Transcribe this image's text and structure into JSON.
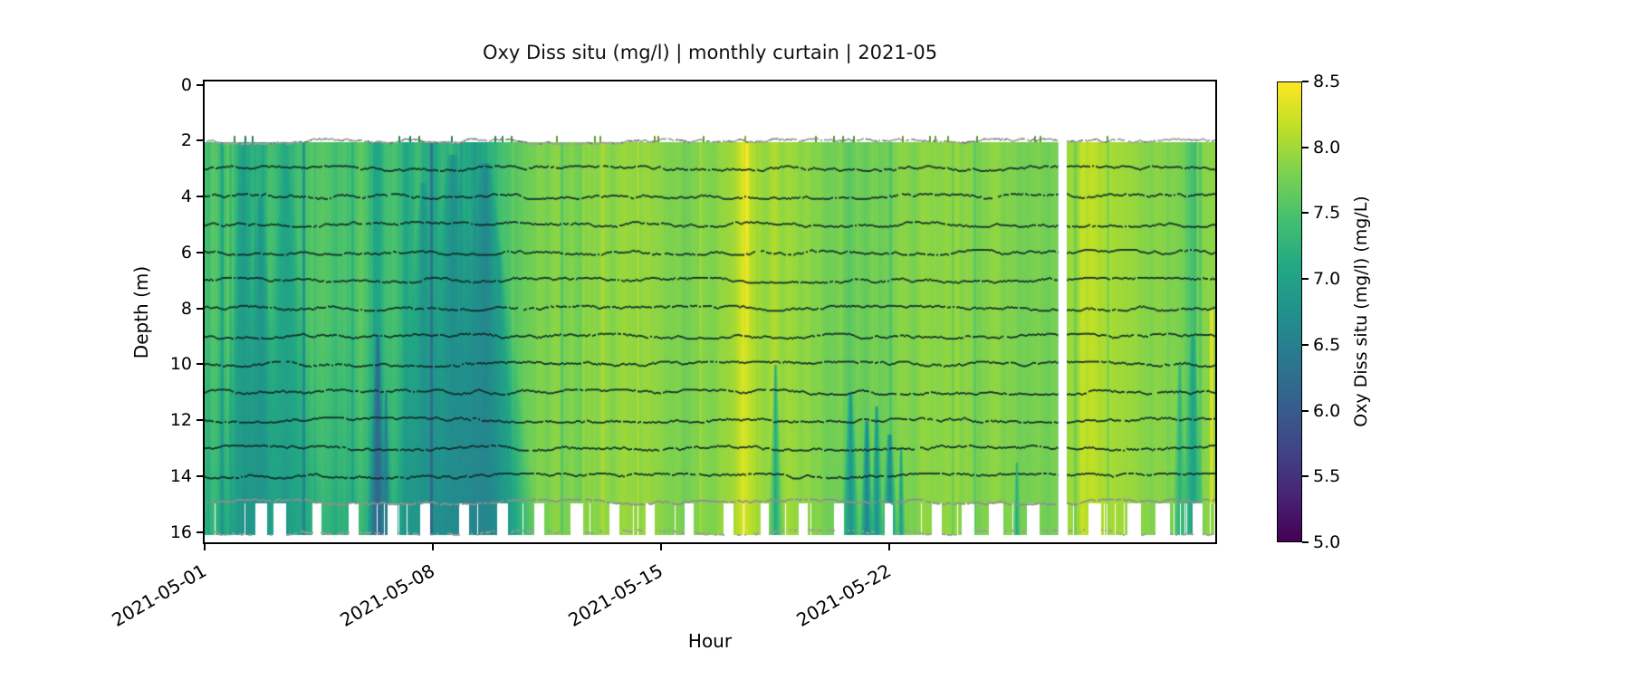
{
  "title": "Oxy Diss situ (mg/l) | monthly curtain | 2021-05",
  "axes": {
    "xlabel": "Hour",
    "ylabel": "Depth (m)",
    "x_ticks": [
      {
        "day": 0,
        "label": "2021-05-01"
      },
      {
        "day": 7,
        "label": "2021-05-08"
      },
      {
        "day": 14,
        "label": "2021-05-15"
      },
      {
        "day": 21,
        "label": "2021-05-22"
      }
    ],
    "y_ticks": [
      0,
      2,
      4,
      6,
      8,
      10,
      12,
      14,
      16
    ],
    "ylim": [
      16.4,
      0
    ]
  },
  "colorbar": {
    "label": "Oxy Diss situ (mg/l) (mg/L)",
    "vmin": 5.0,
    "vmax": 8.5,
    "ticks": [
      {
        "v": 5.0,
        "label": "5.0"
      },
      {
        "v": 5.5,
        "label": "5.5"
      },
      {
        "v": 6.0,
        "label": "6.0"
      },
      {
        "v": 6.5,
        "label": "6.5"
      },
      {
        "v": 7.0,
        "label": "7.0"
      },
      {
        "v": 7.5,
        "label": "7.5"
      },
      {
        "v": 8.0,
        "label": "8.0"
      },
      {
        "v": 8.5,
        "label": "8.5"
      }
    ]
  },
  "chart_data": {
    "type": "heatmap",
    "title": "Oxy Diss situ (mg/l) | monthly curtain | 2021-05",
    "x_start": "2021-05-01",
    "x_end": "2021-06-01",
    "x_span_days": 31,
    "depth_top": 2.07,
    "depth_full_bottom": 14.95,
    "depth_band_bottom": 16.07,
    "colormap": "viridis",
    "clim": [
      5.0,
      8.5
    ],
    "viridis_stops": [
      "#440154",
      "#482475",
      "#414487",
      "#35608d",
      "#2a788e",
      "#21918c",
      "#22a884",
      "#44bf70",
      "#7ad151",
      "#bddf26",
      "#fde725"
    ],
    "column_step_days": 0.25,
    "column_values": [
      7.45,
      7.55,
      7.35,
      7.6,
      7.3,
      7.0,
      7.45,
      7.15,
      7.5,
      7.3,
      7.2,
      7.45,
      7.6,
      7.5,
      7.65,
      7.55,
      7.45,
      7.6,
      7.5,
      7.65,
      7.5,
      6.95,
      7.4,
      7.55,
      7.3,
      7.1,
      7.35,
      7.15,
      7.05,
      7.2,
      7.35,
      7.2,
      7.1,
      6.95,
      7.1,
      7.3,
      7.45,
      7.55,
      7.6,
      7.7,
      7.75,
      7.85,
      7.8,
      7.9,
      7.8,
      7.85,
      7.75,
      7.9,
      7.9,
      7.95,
      7.85,
      8.0,
      7.95,
      7.9,
      8.0,
      7.95,
      7.9,
      7.8,
      7.85,
      7.75,
      7.85,
      7.9,
      7.8,
      7.9,
      7.95,
      8.0,
      8.35,
      8.1,
      8.0,
      7.95,
      8.05,
      7.95,
      8.0,
      7.9,
      7.95,
      7.85,
      7.8,
      7.7,
      7.85,
      7.6,
      7.75,
      7.65,
      7.8,
      7.7,
      7.75,
      7.85,
      7.9,
      7.8,
      7.95,
      7.9,
      7.85,
      7.9,
      7.95,
      7.85,
      7.9,
      7.8,
      7.85,
      7.9,
      7.8,
      7.85,
      7.75,
      7.8,
      7.85,
      7.75,
      7.8,
      7.85,
      7.95,
      8.0,
      8.1,
      8.15,
      8.05,
      8.1,
      8.0,
      7.95,
      8.0,
      7.9,
      7.85,
      7.9,
      7.8,
      7.85,
      7.75,
      7.5,
      7.8,
      7.9,
      7.85
    ],
    "deep_bias": {
      "until_day": 9.8,
      "start_depth": 8.0,
      "per_m": 0.035
    },
    "plumes": [
      {
        "day": 1.15,
        "top": 2.2,
        "value": 6.9,
        "width": 0.08
      },
      {
        "day": 1.7,
        "top": 4.0,
        "value": 6.8,
        "width": 0.1
      },
      {
        "day": 2.5,
        "top": 3.0,
        "value": 7.0,
        "width": 0.15
      },
      {
        "day": 5.3,
        "top": 9.0,
        "value": 6.1,
        "width": 0.07
      },
      {
        "day": 5.55,
        "top": 11.0,
        "value": 6.4,
        "width": 0.05
      },
      {
        "day": 6.7,
        "top": 3.5,
        "value": 6.8,
        "width": 0.12
      },
      {
        "day": 7.6,
        "top": 2.5,
        "value": 6.7,
        "width": 0.18
      },
      {
        "day": 8.05,
        "top": 5.0,
        "value": 6.9,
        "width": 0.12
      },
      {
        "day": 8.6,
        "top": 2.8,
        "value": 6.6,
        "width": 0.2
      },
      {
        "day": 9.0,
        "top": 6.0,
        "value": 6.9,
        "width": 0.1
      },
      {
        "day": 17.5,
        "top": 10.0,
        "value": 7.1,
        "width": 0.06
      },
      {
        "day": 19.8,
        "top": 11.0,
        "value": 6.8,
        "width": 0.08
      },
      {
        "day": 20.3,
        "top": 12.0,
        "value": 6.5,
        "width": 0.07
      },
      {
        "day": 20.6,
        "top": 11.5,
        "value": 6.7,
        "width": 0.06
      },
      {
        "day": 21.0,
        "top": 12.5,
        "value": 6.6,
        "width": 0.09
      },
      {
        "day": 21.35,
        "top": 13.0,
        "value": 6.9,
        "width": 0.05
      },
      {
        "day": 24.9,
        "top": 13.5,
        "value": 7.1,
        "width": 0.05
      },
      {
        "day": 29.9,
        "top": 10.0,
        "value": 7.2,
        "width": 0.06
      },
      {
        "day": 30.3,
        "top": 9.0,
        "value": 7.0,
        "width": 0.08
      }
    ],
    "bright_streaks": [
      {
        "day": 16.62,
        "top": 2.1,
        "bottom": 9.0,
        "value": 8.45,
        "width": 0.05
      },
      {
        "day": 30.88,
        "top": 8.0,
        "bottom": 15.0,
        "value": 8.35,
        "width": 0.04
      }
    ],
    "gap_days": [
      26.2,
      26.42
    ],
    "bottom_segments": [
      [
        0.0,
        1.55
      ],
      [
        1.9,
        2.1
      ],
      [
        2.5,
        3.3
      ],
      [
        3.55,
        4.4
      ],
      [
        4.7,
        5.6
      ],
      [
        5.9,
        6.6
      ],
      [
        6.9,
        7.8
      ],
      [
        8.1,
        8.95
      ],
      [
        9.3,
        10.1
      ],
      [
        10.4,
        11.2
      ],
      [
        11.6,
        12.4
      ],
      [
        12.7,
        13.5
      ],
      [
        13.8,
        14.7
      ],
      [
        15.0,
        15.9
      ],
      [
        16.2,
        17.05
      ],
      [
        17.3,
        18.2
      ],
      [
        18.5,
        19.3
      ],
      [
        19.6,
        20.85
      ],
      [
        21.1,
        22.3
      ],
      [
        22.6,
        23.2
      ],
      [
        23.6,
        24.05
      ],
      [
        24.5,
        25.2
      ],
      [
        25.6,
        26.2
      ],
      [
        26.45,
        27.1
      ],
      [
        27.5,
        28.3
      ],
      [
        28.7,
        29.15
      ],
      [
        29.6,
        30.3
      ],
      [
        30.6,
        31.0
      ]
    ],
    "trace_depths_dark": [
      3,
      4,
      5,
      6,
      7,
      8,
      9,
      10,
      11,
      12,
      13,
      14
    ],
    "trace_depths_gray": [
      2.03,
      14.93,
      16.02
    ],
    "trace_color_dark": "#0f2d28",
    "trace_color_gray": "#a0a0a0"
  }
}
